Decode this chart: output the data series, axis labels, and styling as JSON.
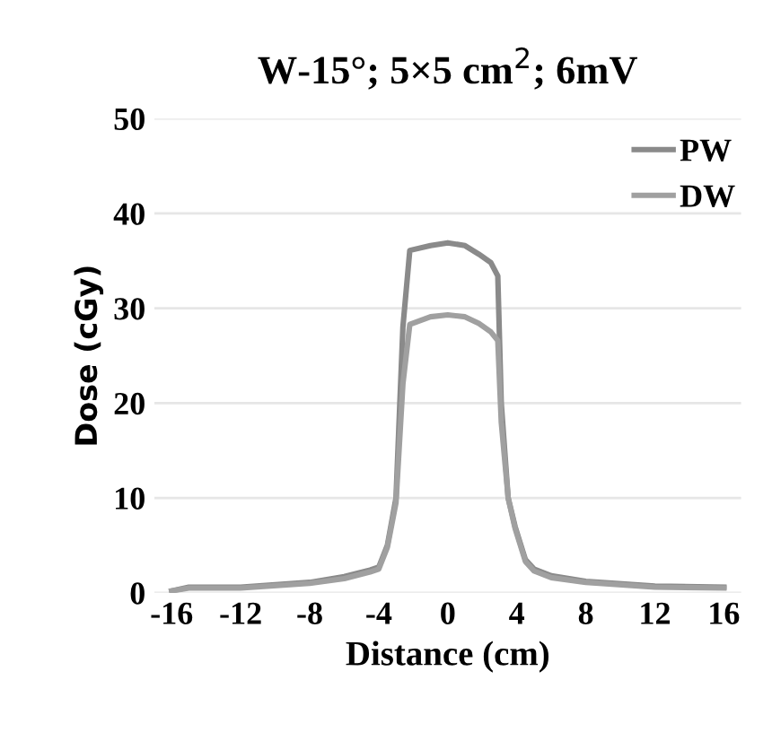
{
  "chart_data": {
    "type": "line",
    "title": "W-15°; 5×5 cm$^{2}$; 6mV",
    "xlabel": "Distance (cm)",
    "ylabel": "Dose (cGy)",
    "xlim": [
      -17,
      17
    ],
    "xticks": [
      -16,
      -12,
      -8,
      -4,
      0,
      4,
      8,
      12,
      16
    ],
    "ylim": [
      0,
      50
    ],
    "yticks": [
      0,
      10,
      20,
      30,
      40,
      50
    ],
    "grid": "y",
    "legend": "top right",
    "series": [
      {
        "name": "PW",
        "color": "#8a8a8a",
        "x": [
          -16,
          -15,
          -12,
          -8,
          -6,
          -4.5,
          -4,
          -3.5,
          -3,
          -2.6,
          -2.2,
          -1,
          0,
          1,
          1.8,
          2.5,
          2.9,
          3.1,
          3.5,
          3.9,
          4.5,
          5,
          6,
          8,
          12,
          16
        ],
        "values": [
          0.2,
          0.6,
          0.6,
          1.1,
          1.7,
          2.4,
          2.7,
          5,
          10,
          28,
          36.1,
          36.6,
          36.9,
          36.6,
          35.7,
          34.8,
          33.4,
          20,
          10,
          7,
          3.5,
          2.5,
          1.8,
          1.2,
          0.7,
          0.6
        ]
      },
      {
        "name": "DW",
        "color": "#a0a0a0",
        "x": [
          -16,
          -15,
          -12,
          -8,
          -6,
          -4.5,
          -4,
          -3.5,
          -3,
          -2.6,
          -2.2,
          -1,
          0,
          1,
          1.8,
          2.5,
          2.9,
          3.1,
          3.5,
          3.9,
          4.5,
          5,
          6,
          8,
          12,
          16
        ],
        "values": [
          0.2,
          0.5,
          0.5,
          1,
          1.5,
          2.2,
          2.5,
          4.8,
          9.5,
          22,
          28.3,
          29.1,
          29.3,
          29.1,
          28.4,
          27.5,
          26.6,
          18,
          10,
          6.8,
          3.3,
          2.3,
          1.6,
          1.1,
          0.6,
          0.5
        ]
      }
    ]
  }
}
